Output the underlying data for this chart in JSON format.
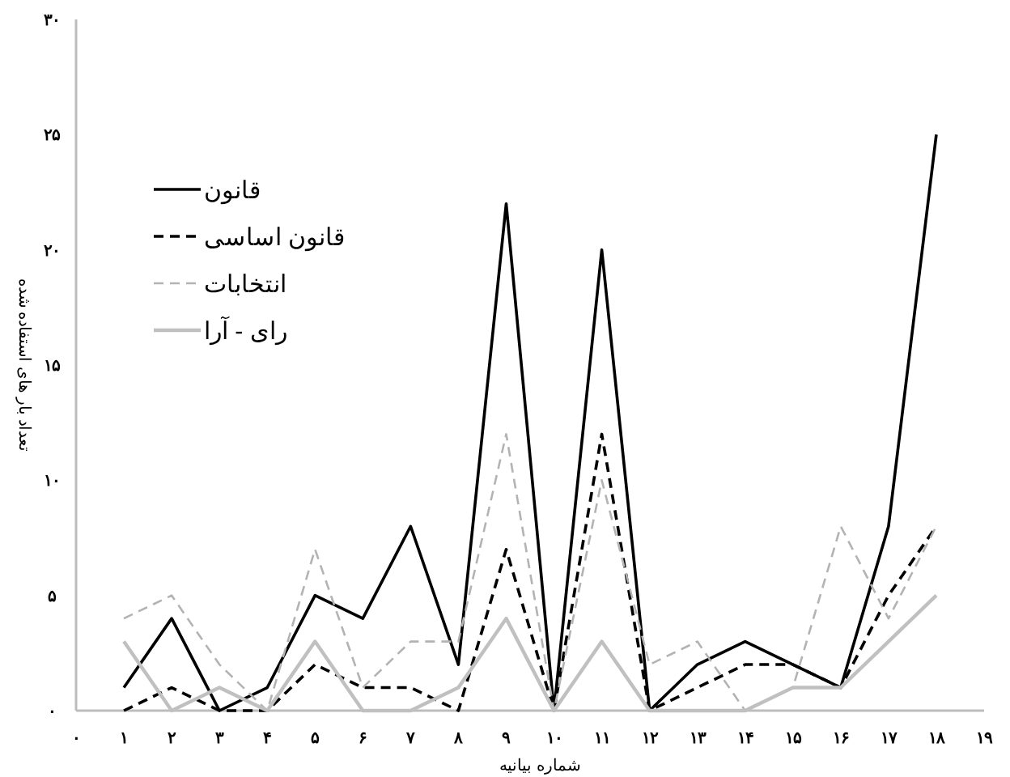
{
  "chart_data": {
    "type": "line",
    "xlabel": "شماره بیانیه",
    "ylabel": "تعداد بار های استفاده شده",
    "x": [
      1,
      2,
      3,
      4,
      5,
      6,
      7,
      8,
      9,
      10,
      11,
      12,
      13,
      14,
      15,
      16,
      17,
      18
    ],
    "xlim": [
      0,
      19
    ],
    "ylim": [
      0,
      30
    ],
    "xticks": [
      {
        "value": 0,
        "label": "۰"
      },
      {
        "value": 1,
        "label": "۱"
      },
      {
        "value": 2,
        "label": "۲"
      },
      {
        "value": 3,
        "label": "۳"
      },
      {
        "value": 4,
        "label": "۴"
      },
      {
        "value": 5,
        "label": "۵"
      },
      {
        "value": 6,
        "label": "۶"
      },
      {
        "value": 7,
        "label": "۷"
      },
      {
        "value": 8,
        "label": "۸"
      },
      {
        "value": 9,
        "label": "۹"
      },
      {
        "value": 10,
        "label": "۱۰"
      },
      {
        "value": 11,
        "label": "۱۱"
      },
      {
        "value": 12,
        "label": "۱۲"
      },
      {
        "value": 13,
        "label": "۱۳"
      },
      {
        "value": 14,
        "label": "۱۴"
      },
      {
        "value": 15,
        "label": "۱۵"
      },
      {
        "value": 16,
        "label": "۱۶"
      },
      {
        "value": 17,
        "label": "۱۷"
      },
      {
        "value": 18,
        "label": "۱۸"
      },
      {
        "value": 19,
        "label": "۱۹"
      }
    ],
    "yticks": [
      {
        "value": 0,
        "label": "۰"
      },
      {
        "value": 5,
        "label": "۵"
      },
      {
        "value": 10,
        "label": "۱۰"
      },
      {
        "value": 15,
        "label": "۱۵"
      },
      {
        "value": 20,
        "label": "۲۰"
      },
      {
        "value": 25,
        "label": "۲۵"
      },
      {
        "value": 30,
        "label": "۳۰"
      }
    ],
    "grid": false,
    "legend": "top left",
    "marker": "none",
    "series": [
      {
        "name": "قانون",
        "color": "#000000",
        "line_style": "solid",
        "values": [
          1,
          4,
          0,
          1,
          5,
          4,
          8,
          2,
          22,
          0,
          20,
          0,
          2,
          3,
          2,
          1,
          8,
          25
        ]
      },
      {
        "name": "قانون اساسی",
        "color": "#000000",
        "line_style": "dashed",
        "values": [
          0,
          1,
          0,
          0,
          2,
          1,
          1,
          0,
          7,
          0,
          12,
          0,
          1,
          2,
          2,
          1,
          5,
          8
        ]
      },
      {
        "name": "انتخابات",
        "color": "#b3b3b3",
        "line_style": "dashed",
        "values": [
          4,
          5,
          2,
          0,
          7,
          1,
          3,
          3,
          12,
          0,
          10,
          2,
          3,
          0,
          1,
          8,
          4,
          8
        ]
      },
      {
        "name": "رای - آرا",
        "color": "#c0c0c0",
        "line_style": "solid",
        "values": [
          3,
          0,
          1,
          0,
          3,
          0,
          0,
          1,
          4,
          0,
          3,
          0,
          0,
          0,
          1,
          1,
          3,
          5
        ]
      }
    ]
  }
}
